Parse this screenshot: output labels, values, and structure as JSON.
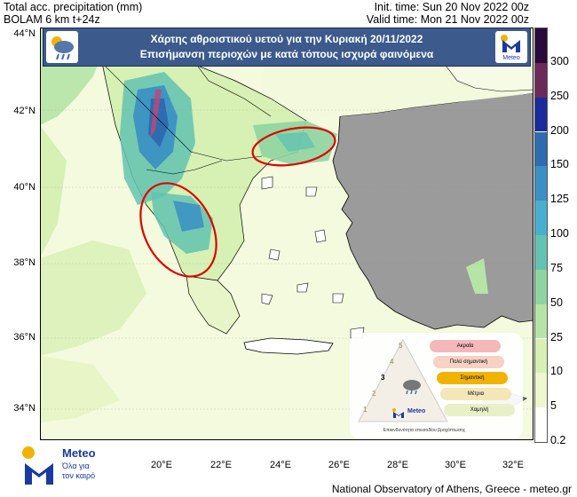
{
  "header": {
    "left_line1": "Total acc. precipitation (mm)",
    "left_line2": "BOLAM 6 km t+24z",
    "right_line1": "Init. time: Sun 20 Nov 2022 00z",
    "right_line2": "Valid time: Mon 21 Nov 2022 00z"
  },
  "banner": {
    "line1": "Χάρτης αθροιστικού υετού για την Κυριακή 20/11/2022",
    "line2": "Επισήμανση περιοχών με κατά τόπους ισχυρά φαινόμενα",
    "logo_text": "Meteo"
  },
  "axes": {
    "lat_ticks": [
      "44°N",
      "42°N",
      "40°N",
      "38°N",
      "36°N",
      "34°N"
    ],
    "lon_ticks": [
      "20°E",
      "22°E",
      "24°E",
      "26°E",
      "28°E",
      "30°E",
      "32°E"
    ]
  },
  "colorbar": {
    "labels": [
      "300",
      "250",
      "200",
      "150",
      "125",
      "100",
      "75",
      "50",
      "25",
      "10",
      "5",
      "0.2"
    ],
    "colors": [
      "#2a0a3c",
      "#6b2a5a",
      "#1a2c9c",
      "#2d6cb0",
      "#3a8fc4",
      "#4aaed0",
      "#63c3b0",
      "#8fd4a0",
      "#b6e4a6",
      "#d7f0b4",
      "#eef8cc",
      "#ffffff"
    ]
  },
  "legend": {
    "levels": [
      {
        "num": "5",
        "label": "Ακραία",
        "color": "#f5b8b8"
      },
      {
        "num": "4",
        "label": "Πολύ σημαντική",
        "color": "#f7d1c4"
      },
      {
        "num": "3",
        "label": "Σημαντική",
        "color": "#f2b300"
      },
      {
        "num": "2",
        "label": "Μέτρια",
        "color": "#f5e6b8"
      },
      {
        "num": "1",
        "label": "Χαμηλή",
        "color": "#e8f0c8"
      }
    ],
    "caption": "Επικινδυνότητα επεισοδίου βροχόπτωσης",
    "logo_text": "Meteo"
  },
  "brand": {
    "name": "Meteo",
    "tagline_1": "Όλα για",
    "tagline_2": "τον καιρό"
  },
  "footer": "National Observatory of Athens, Greece - meteo.gr"
}
